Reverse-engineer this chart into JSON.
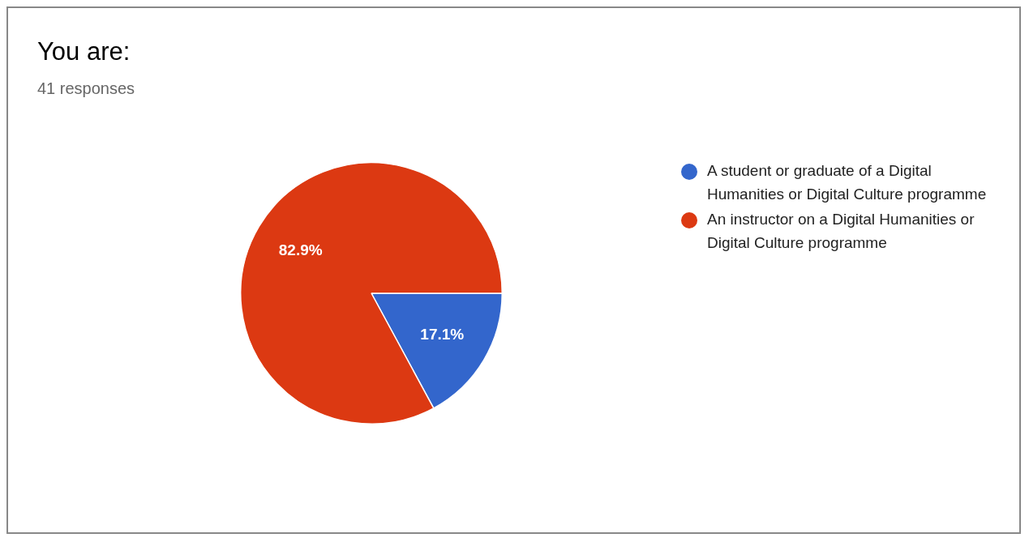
{
  "chart_data": {
    "type": "pie",
    "title": "You are:",
    "subtitle": "41 responses",
    "categories": [
      "A student or graduate of a Digital Humanities or Digital Culture programme",
      "An instructor on a Digital Humanities or Digital Culture programme"
    ],
    "values": [
      17.1,
      82.9
    ],
    "colors": [
      "#3366cc",
      "#dc3912"
    ],
    "value_labels": [
      "17.1%",
      "82.9%"
    ],
    "legend": "right"
  }
}
